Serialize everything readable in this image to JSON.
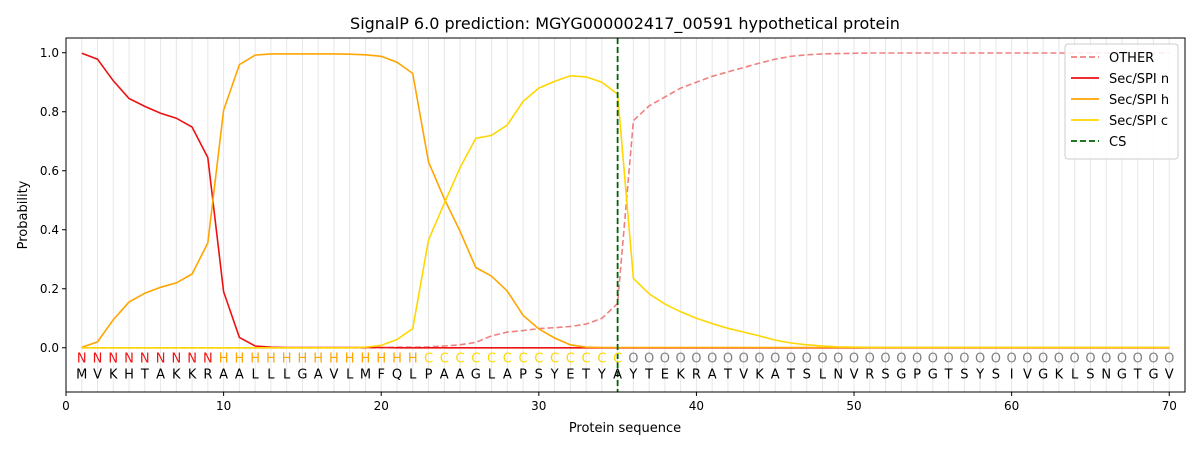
{
  "chart_data": {
    "type": "line",
    "title": "SignalP 6.0 prediction: MGYG000002417_00591 hypothetical protein",
    "xlabel": "Protein sequence",
    "ylabel": "Probability",
    "xlim": [
      0,
      71
    ],
    "ylim": [
      -0.15,
      1.05
    ],
    "xticks": [
      0,
      10,
      20,
      30,
      40,
      50,
      60,
      70
    ],
    "yticks": [
      0.0,
      0.2,
      0.4,
      0.6,
      0.8,
      1.0
    ],
    "ytick_labels": [
      "0.0",
      "0.2",
      "0.4",
      "0.6",
      "0.8",
      "1.0"
    ],
    "grid": "vertical lines at each residue",
    "legend_position": "top-right",
    "x": [
      1,
      2,
      3,
      4,
      5,
      6,
      7,
      8,
      9,
      10,
      11,
      12,
      13,
      14,
      15,
      16,
      17,
      18,
      19,
      20,
      21,
      22,
      23,
      24,
      25,
      26,
      27,
      28,
      29,
      30,
      31,
      32,
      33,
      34,
      35,
      36,
      37,
      38,
      39,
      40,
      41,
      42,
      43,
      44,
      45,
      46,
      47,
      48,
      49,
      50,
      51,
      52,
      53,
      54,
      55,
      56,
      57,
      58,
      59,
      60,
      61,
      62,
      63,
      64,
      65,
      66,
      67,
      68,
      69,
      70
    ],
    "series": [
      {
        "name": "OTHER",
        "color": "#f08080",
        "style": "dashed",
        "values": [
          0,
          0,
          0,
          0,
          0,
          0,
          0,
          0,
          0,
          0,
          0,
          0,
          0,
          0,
          0,
          0,
          0,
          0,
          0,
          0,
          0.002,
          0.002,
          0.003,
          0.006,
          0.01,
          0.018,
          0.04,
          0.053,
          0.058,
          0.065,
          0.068,
          0.072,
          0.08,
          0.1,
          0.15,
          0.77,
          0.82,
          0.85,
          0.88,
          0.9,
          0.92,
          0.935,
          0.95,
          0.965,
          0.978,
          0.988,
          0.993,
          0.996,
          0.997,
          0.998,
          0.999,
          0.999,
          0.999,
          0.999,
          0.999,
          0.999,
          0.999,
          0.999,
          0.999,
          0.999,
          0.999,
          0.999,
          0.999,
          0.999,
          0.999,
          0.999,
          0.999,
          0.999,
          0.999,
          0.999
        ]
      },
      {
        "name": "Sec/SPI n",
        "color": "#ee1111",
        "style": "solid",
        "values": [
          0.998,
          0.978,
          0.905,
          0.845,
          0.818,
          0.795,
          0.778,
          0.748,
          0.645,
          0.19,
          0.035,
          0.006,
          0.002,
          0.001,
          0.001,
          0.001,
          0.001,
          0.001,
          0.001,
          0.001,
          0,
          0,
          0,
          0,
          0,
          0,
          0,
          0,
          0,
          0,
          0,
          0,
          0,
          0,
          0,
          0,
          0,
          0,
          0,
          0,
          0,
          0,
          0,
          0,
          0,
          0,
          0,
          0,
          0,
          0,
          0,
          0,
          0,
          0,
          0,
          0,
          0,
          0,
          0,
          0,
          0,
          0,
          0,
          0,
          0,
          0,
          0,
          0,
          0,
          0
        ]
      },
      {
        "name": "Sec/SPI h",
        "color": "#ffa500",
        "style": "solid",
        "values": [
          0.002,
          0.02,
          0.095,
          0.155,
          0.185,
          0.205,
          0.22,
          0.25,
          0.355,
          0.805,
          0.96,
          0.992,
          0.996,
          0.996,
          0.996,
          0.996,
          0.996,
          0.995,
          0.993,
          0.988,
          0.968,
          0.93,
          0.63,
          0.505,
          0.395,
          0.272,
          0.243,
          0.192,
          0.11,
          0.064,
          0.033,
          0.01,
          0.002,
          0.001,
          0.001,
          0.001,
          0.001,
          0.001,
          0.001,
          0.001,
          0.001,
          0.001,
          0.001,
          0.001,
          0.001,
          0.001,
          0.001,
          0.001,
          0.001,
          0.001,
          0.001,
          0.001,
          0.001,
          0.001,
          0.001,
          0.001,
          0.001,
          0.001,
          0.001,
          0.001,
          0.001,
          0.001,
          0.001,
          0.001,
          0.001,
          0.001,
          0.001,
          0.001,
          0.001,
          0.001
        ]
      },
      {
        "name": "Sec/SPI c",
        "color": "#ffd700",
        "style": "solid",
        "values": [
          0,
          0,
          0,
          0,
          0,
          0,
          0,
          0,
          0,
          0,
          0,
          0,
          0,
          0,
          0,
          0,
          0,
          0,
          0.002,
          0.008,
          0.028,
          0.065,
          0.365,
          0.49,
          0.61,
          0.71,
          0.72,
          0.755,
          0.835,
          0.88,
          0.903,
          0.922,
          0.918,
          0.9,
          0.86,
          0.235,
          0.183,
          0.148,
          0.122,
          0.1,
          0.082,
          0.066,
          0.053,
          0.04,
          0.026,
          0.016,
          0.01,
          0.006,
          0.003,
          0.002,
          0.001,
          0.001,
          0.001,
          0.001,
          0.001,
          0.001,
          0.001,
          0.001,
          0.001,
          0.001,
          0.001,
          0.001,
          0.001,
          0.001,
          0.001,
          0.001,
          0.001,
          0.001,
          0.001,
          0.001
        ]
      }
    ],
    "cs": {
      "name": "CS",
      "x": 35,
      "color": "#006400",
      "style": "dashed"
    },
    "sequence": [
      "M",
      "V",
      "K",
      "H",
      "T",
      "A",
      "K",
      "K",
      "R",
      "A",
      "A",
      "L",
      "L",
      "L",
      "G",
      "A",
      "V",
      "L",
      "M",
      "F",
      "Q",
      "L",
      "P",
      "A",
      "A",
      "G",
      "L",
      "A",
      "P",
      "S",
      "Y",
      "E",
      "T",
      "Y",
      "A",
      "Y",
      "T",
      "E",
      "K",
      "R",
      "A",
      "T",
      "V",
      "K",
      "A",
      "T",
      "S",
      "L",
      "N",
      "V",
      "R",
      "S",
      "G",
      "P",
      "G",
      "T",
      "S",
      "Y",
      "S",
      "I",
      "V",
      "G",
      "K",
      "L",
      "S",
      "N",
      "G",
      "T",
      "G",
      "V"
    ],
    "region_labels": [
      "N",
      "N",
      "N",
      "N",
      "N",
      "N",
      "N",
      "N",
      "N",
      "H",
      "H",
      "H",
      "H",
      "H",
      "H",
      "H",
      "H",
      "H",
      "H",
      "H",
      "H",
      "H",
      "C",
      "C",
      "C",
      "C",
      "C",
      "C",
      "C",
      "C",
      "C",
      "C",
      "C",
      "C",
      "C",
      "O",
      "O",
      "O",
      "O",
      "O",
      "O",
      "O",
      "O",
      "O",
      "O",
      "O",
      "O",
      "O",
      "O",
      "O",
      "O",
      "O",
      "O",
      "O",
      "O",
      "O",
      "O",
      "O",
      "O",
      "O",
      "O",
      "O",
      "O",
      "O",
      "O",
      "O",
      "O",
      "O",
      "O",
      "O"
    ],
    "region_colors": {
      "N": "#ee1111",
      "H": "#ffa500",
      "C": "#ffd700",
      "O": "#808080"
    }
  }
}
